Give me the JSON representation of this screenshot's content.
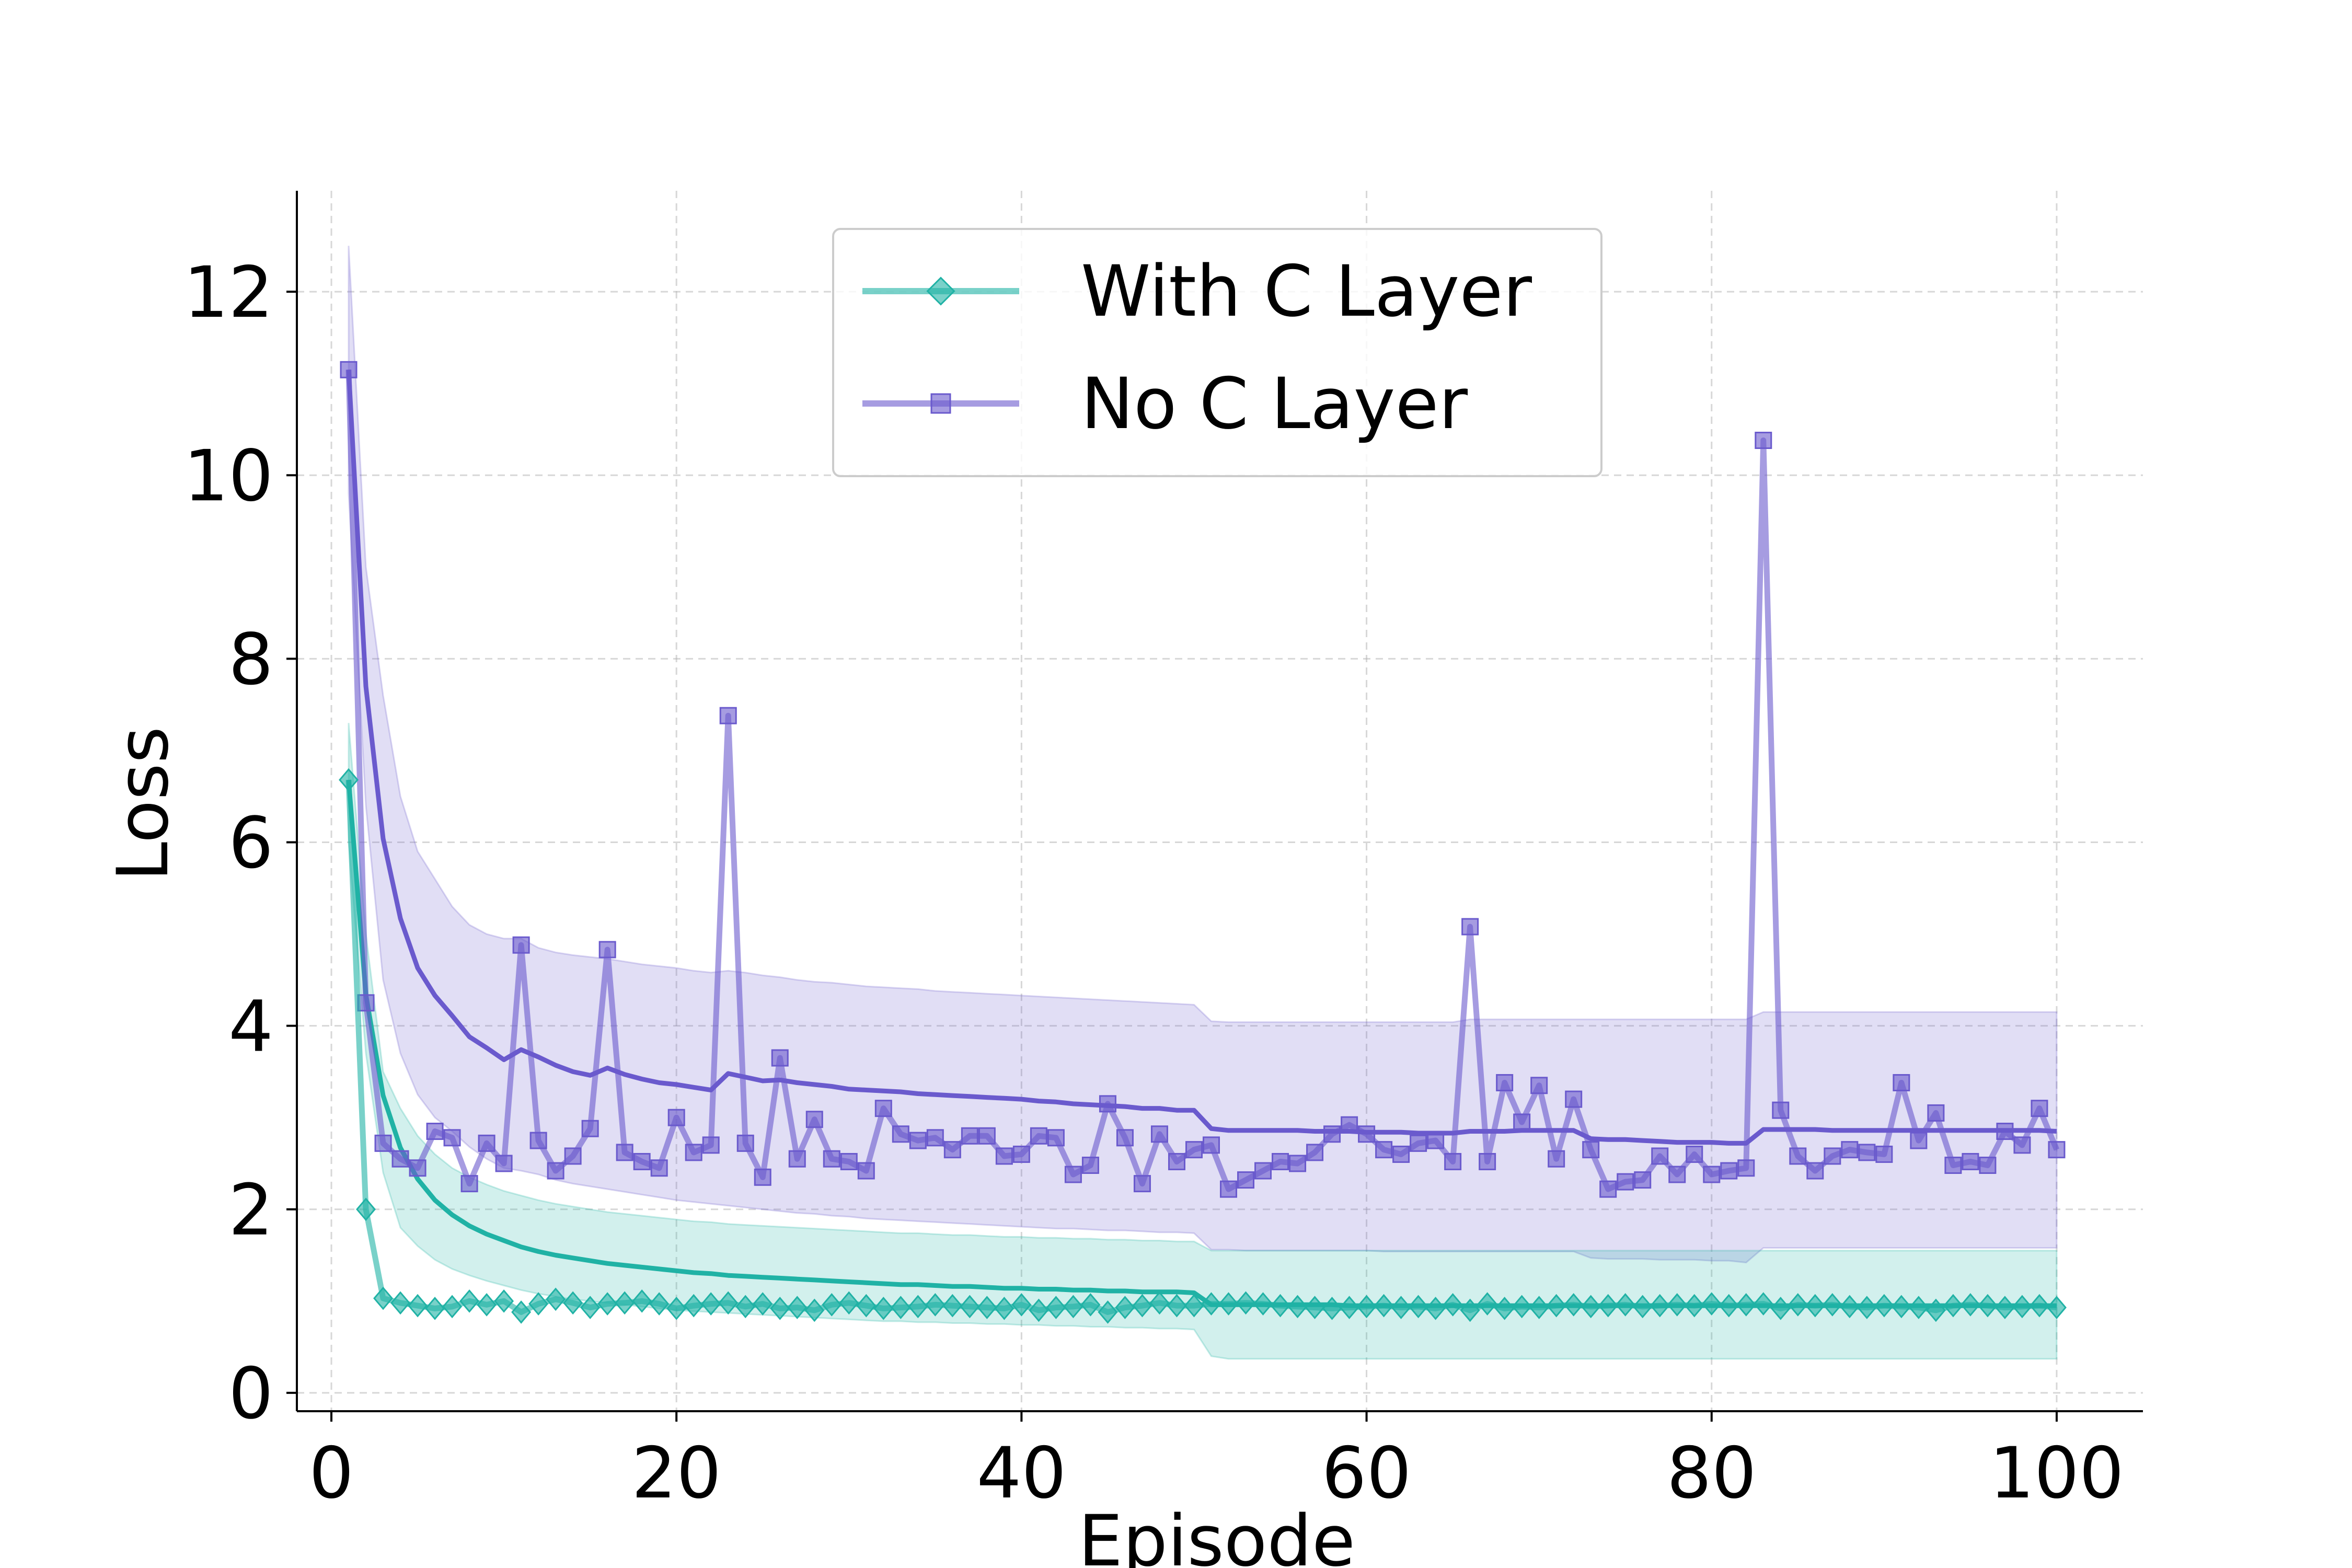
{
  "chart_data": {
    "type": "line",
    "title": "",
    "xlabel": "Episode",
    "ylabel": "Loss",
    "xlim": [
      -2,
      105
    ],
    "ylim": [
      -0.2,
      13.1
    ],
    "xticks": [
      0,
      20,
      40,
      60,
      80,
      100
    ],
    "yticks": [
      0,
      2,
      4,
      6,
      8,
      10,
      12
    ],
    "grid": true,
    "legend_position": "upper-center",
    "series": [
      {
        "name": "No C Layer",
        "color": "#6a5acd",
        "marker": "square",
        "x": [
          1,
          2,
          3,
          4,
          5,
          6,
          7,
          8,
          9,
          10,
          11,
          12,
          13,
          14,
          15,
          16,
          17,
          18,
          19,
          20,
          21,
          22,
          23,
          24,
          25,
          26,
          27,
          28,
          29,
          30,
          31,
          32,
          33,
          34,
          35,
          36,
          37,
          38,
          39,
          40,
          41,
          42,
          43,
          44,
          45,
          46,
          47,
          48,
          49,
          50,
          51,
          52,
          53,
          54,
          55,
          56,
          57,
          58,
          59,
          60,
          61,
          62,
          63,
          64,
          65,
          66,
          67,
          68,
          69,
          70,
          71,
          72,
          73,
          74,
          75,
          76,
          77,
          78,
          79,
          80,
          81,
          82,
          83,
          84,
          85,
          86,
          87,
          88,
          89,
          90,
          91,
          92,
          93,
          94,
          95,
          96,
          97,
          98,
          99,
          100
        ],
        "values": [
          11.15,
          4.25,
          2.72,
          2.55,
          2.45,
          2.85,
          2.78,
          2.28,
          2.72,
          2.5,
          4.88,
          2.75,
          2.42,
          2.58,
          2.88,
          4.83,
          2.62,
          2.52,
          2.45,
          3.0,
          2.62,
          2.7,
          7.38,
          2.72,
          2.35,
          3.65,
          2.55,
          2.98,
          2.55,
          2.52,
          2.42,
          3.1,
          2.82,
          2.75,
          2.78,
          2.65,
          2.8,
          2.8,
          2.58,
          2.6,
          2.8,
          2.78,
          2.38,
          2.48,
          3.15,
          2.78,
          2.28,
          2.82,
          2.52,
          2.65,
          2.7,
          2.22,
          2.32,
          2.42,
          2.52,
          2.5,
          2.62,
          2.82,
          2.92,
          2.82,
          2.65,
          2.6,
          2.72,
          2.75,
          2.52,
          5.08,
          2.52,
          3.38,
          2.95,
          3.35,
          2.55,
          3.2,
          2.65,
          2.22,
          2.3,
          2.32,
          2.58,
          2.38,
          2.6,
          2.38,
          2.42,
          2.45,
          10.38,
          3.08,
          2.58,
          2.42,
          2.58,
          2.65,
          2.62,
          2.6,
          3.38,
          2.75,
          3.05,
          2.48,
          2.52,
          2.48,
          2.85,
          2.7,
          3.1,
          2.65
        ],
        "mean": [
          11.15,
          7.7,
          6.04,
          5.17,
          4.63,
          4.33,
          4.11,
          3.88,
          3.76,
          3.63,
          3.74,
          3.66,
          3.57,
          3.5,
          3.46,
          3.54,
          3.47,
          3.42,
          3.38,
          3.36,
          3.33,
          3.3,
          3.48,
          3.44,
          3.4,
          3.41,
          3.38,
          3.36,
          3.34,
          3.31,
          3.3,
          3.29,
          3.28,
          3.26,
          3.25,
          3.24,
          3.23,
          3.22,
          3.21,
          3.2,
          3.18,
          3.17,
          3.15,
          3.14,
          3.13,
          3.12,
          3.1,
          3.1,
          3.08,
          3.08,
          2.88,
          2.86,
          2.86,
          2.86,
          2.86,
          2.86,
          2.85,
          2.85,
          2.85,
          2.84,
          2.84,
          2.84,
          2.83,
          2.83,
          2.83,
          2.85,
          2.85,
          2.85,
          2.86,
          2.86,
          2.86,
          2.86,
          2.77,
          2.76,
          2.76,
          2.75,
          2.74,
          2.73,
          2.73,
          2.73,
          2.72,
          2.72,
          2.87,
          2.87,
          2.87,
          2.87,
          2.86,
          2.86,
          2.86,
          2.86,
          2.86,
          2.86,
          2.86,
          2.86,
          2.86,
          2.86,
          2.86,
          2.86,
          2.86,
          2.85
        ],
        "upper": [
          12.5,
          9.0,
          7.6,
          6.5,
          5.9,
          5.6,
          5.3,
          5.1,
          5.0,
          4.95,
          4.95,
          4.85,
          4.8,
          4.77,
          4.75,
          4.73,
          4.7,
          4.67,
          4.65,
          4.63,
          4.6,
          4.58,
          4.6,
          4.58,
          4.55,
          4.53,
          4.5,
          4.48,
          4.47,
          4.45,
          4.43,
          4.42,
          4.41,
          4.4,
          4.38,
          4.37,
          4.36,
          4.35,
          4.34,
          4.33,
          4.32,
          4.31,
          4.3,
          4.29,
          4.28,
          4.27,
          4.26,
          4.25,
          4.24,
          4.23,
          4.05,
          4.04,
          4.04,
          4.04,
          4.04,
          4.04,
          4.04,
          4.04,
          4.04,
          4.04,
          4.04,
          4.04,
          4.04,
          4.04,
          4.04,
          4.07,
          4.07,
          4.07,
          4.07,
          4.07,
          4.07,
          4.07,
          4.07,
          4.07,
          4.07,
          4.07,
          4.07,
          4.07,
          4.07,
          4.07,
          4.07,
          4.07,
          4.15,
          4.15,
          4.15,
          4.15,
          4.15,
          4.15,
          4.15,
          4.15,
          4.15,
          4.15,
          4.15,
          4.15,
          4.15,
          4.15,
          4.15,
          4.15,
          4.15,
          4.15
        ],
        "lower": [
          9.8,
          6.4,
          4.5,
          3.7,
          3.25,
          3.0,
          2.85,
          2.68,
          2.55,
          2.45,
          2.42,
          2.38,
          2.32,
          2.28,
          2.25,
          2.22,
          2.19,
          2.16,
          2.13,
          2.1,
          2.08,
          2.06,
          2.04,
          2.02,
          2.0,
          1.98,
          1.96,
          1.95,
          1.93,
          1.92,
          1.9,
          1.89,
          1.88,
          1.87,
          1.86,
          1.85,
          1.84,
          1.83,
          1.82,
          1.81,
          1.8,
          1.79,
          1.79,
          1.78,
          1.77,
          1.77,
          1.76,
          1.75,
          1.75,
          1.74,
          1.56,
          1.56,
          1.55,
          1.55,
          1.55,
          1.55,
          1.55,
          1.55,
          1.55,
          1.55,
          1.54,
          1.54,
          1.54,
          1.54,
          1.54,
          1.54,
          1.54,
          1.54,
          1.54,
          1.54,
          1.54,
          1.54,
          1.47,
          1.46,
          1.46,
          1.46,
          1.45,
          1.45,
          1.45,
          1.44,
          1.44,
          1.42,
          1.58,
          1.58,
          1.58,
          1.58,
          1.58,
          1.58,
          1.58,
          1.58,
          1.58,
          1.58,
          1.58,
          1.58,
          1.58,
          1.58,
          1.58,
          1.58,
          1.58,
          1.58
        ]
      },
      {
        "name": "With C Layer",
        "color": "#20b2a5",
        "marker": "diamond",
        "x": [
          1,
          2,
          3,
          4,
          5,
          6,
          7,
          8,
          9,
          10,
          11,
          12,
          13,
          14,
          15,
          16,
          17,
          18,
          19,
          20,
          21,
          22,
          23,
          24,
          25,
          26,
          27,
          28,
          29,
          30,
          31,
          32,
          33,
          34,
          35,
          36,
          37,
          38,
          39,
          40,
          41,
          42,
          43,
          44,
          45,
          46,
          47,
          48,
          49,
          50,
          51,
          52,
          53,
          54,
          55,
          56,
          57,
          58,
          59,
          60,
          61,
          62,
          63,
          64,
          65,
          66,
          67,
          68,
          69,
          70,
          71,
          72,
          73,
          74,
          75,
          76,
          77,
          78,
          79,
          80,
          81,
          82,
          83,
          84,
          85,
          86,
          87,
          88,
          89,
          90,
          91,
          92,
          93,
          94,
          95,
          96,
          97,
          98,
          99,
          100
        ],
        "values": [
          6.68,
          2.0,
          1.03,
          0.98,
          0.95,
          0.92,
          0.94,
          1.0,
          0.96,
          1.0,
          0.88,
          0.97,
          1.02,
          0.98,
          0.93,
          0.97,
          0.98,
          1.0,
          0.97,
          0.92,
          0.95,
          0.97,
          0.98,
          0.94,
          0.97,
          0.92,
          0.93,
          0.9,
          0.96,
          0.98,
          0.95,
          0.92,
          0.93,
          0.94,
          0.96,
          0.95,
          0.94,
          0.93,
          0.92,
          0.96,
          0.9,
          0.93,
          0.94,
          0.96,
          0.88,
          0.93,
          0.95,
          0.98,
          0.95,
          0.95,
          0.97,
          0.97,
          0.98,
          0.97,
          0.95,
          0.94,
          0.93,
          0.92,
          0.93,
          0.94,
          0.95,
          0.93,
          0.94,
          0.92,
          0.96,
          0.9,
          0.97,
          0.92,
          0.94,
          0.93,
          0.95,
          0.96,
          0.94,
          0.95,
          0.96,
          0.94,
          0.95,
          0.96,
          0.95,
          0.97,
          0.95,
          0.96,
          0.97,
          0.92,
          0.96,
          0.95,
          0.96,
          0.94,
          0.93,
          0.95,
          0.94,
          0.93,
          0.9,
          0.95,
          0.96,
          0.95,
          0.93,
          0.94,
          0.95,
          0.93
        ],
        "mean": [
          6.68,
          4.34,
          3.24,
          2.67,
          2.33,
          2.1,
          1.94,
          1.82,
          1.73,
          1.66,
          1.59,
          1.54,
          1.5,
          1.47,
          1.44,
          1.41,
          1.39,
          1.37,
          1.35,
          1.33,
          1.31,
          1.3,
          1.28,
          1.27,
          1.26,
          1.25,
          1.24,
          1.23,
          1.22,
          1.21,
          1.2,
          1.19,
          1.18,
          1.18,
          1.17,
          1.16,
          1.16,
          1.15,
          1.14,
          1.14,
          1.13,
          1.13,
          1.12,
          1.12,
          1.11,
          1.11,
          1.1,
          1.1,
          1.1,
          1.09,
          0.96,
          0.96,
          0.96,
          0.96,
          0.96,
          0.96,
          0.96,
          0.96,
          0.95,
          0.95,
          0.95,
          0.95,
          0.95,
          0.95,
          0.95,
          0.95,
          0.95,
          0.95,
          0.95,
          0.95,
          0.95,
          0.95,
          0.95,
          0.95,
          0.95,
          0.95,
          0.95,
          0.95,
          0.95,
          0.95,
          0.95,
          0.95,
          0.95,
          0.95,
          0.95,
          0.95,
          0.95,
          0.95,
          0.95,
          0.95,
          0.95,
          0.95,
          0.95,
          0.95,
          0.95,
          0.95,
          0.95,
          0.95,
          0.95,
          0.95
        ],
        "upper": [
          7.3,
          5.0,
          3.5,
          3.1,
          2.8,
          2.6,
          2.45,
          2.35,
          2.27,
          2.2,
          2.15,
          2.1,
          2.06,
          2.03,
          2.0,
          1.97,
          1.95,
          1.93,
          1.91,
          1.89,
          1.87,
          1.86,
          1.84,
          1.83,
          1.82,
          1.81,
          1.8,
          1.79,
          1.78,
          1.77,
          1.76,
          1.75,
          1.74,
          1.74,
          1.73,
          1.72,
          1.72,
          1.71,
          1.7,
          1.7,
          1.69,
          1.69,
          1.68,
          1.68,
          1.67,
          1.67,
          1.66,
          1.66,
          1.65,
          1.65,
          1.55,
          1.55,
          1.55,
          1.55,
          1.55,
          1.55,
          1.55,
          1.55,
          1.55,
          1.55,
          1.55,
          1.55,
          1.55,
          1.55,
          1.55,
          1.55,
          1.55,
          1.55,
          1.55,
          1.55,
          1.55,
          1.55,
          1.55,
          1.55,
          1.55,
          1.55,
          1.55,
          1.55,
          1.55,
          1.55,
          1.55,
          1.55,
          1.55,
          1.55,
          1.55,
          1.55,
          1.55,
          1.55,
          1.55,
          1.55,
          1.55,
          1.55,
          1.55,
          1.55,
          1.55,
          1.55,
          1.55,
          1.55,
          1.55,
          1.55
        ],
        "lower": [
          6.0,
          3.7,
          2.4,
          1.8,
          1.6,
          1.45,
          1.35,
          1.28,
          1.22,
          1.17,
          1.12,
          1.08,
          1.05,
          1.02,
          1.0,
          0.98,
          0.96,
          0.94,
          0.92,
          0.9,
          0.89,
          0.88,
          0.87,
          0.86,
          0.85,
          0.84,
          0.83,
          0.82,
          0.81,
          0.8,
          0.79,
          0.78,
          0.78,
          0.77,
          0.77,
          0.76,
          0.76,
          0.75,
          0.75,
          0.74,
          0.74,
          0.73,
          0.73,
          0.72,
          0.72,
          0.71,
          0.71,
          0.7,
          0.7,
          0.69,
          0.4,
          0.37,
          0.37,
          0.37,
          0.37,
          0.37,
          0.37,
          0.37,
          0.37,
          0.37,
          0.37,
          0.37,
          0.37,
          0.37,
          0.37,
          0.37,
          0.37,
          0.37,
          0.37,
          0.37,
          0.37,
          0.37,
          0.37,
          0.37,
          0.37,
          0.37,
          0.37,
          0.37,
          0.37,
          0.37,
          0.37,
          0.37,
          0.37,
          0.37,
          0.37,
          0.37,
          0.37,
          0.37,
          0.37,
          0.37,
          0.37,
          0.37,
          0.37,
          0.37,
          0.37,
          0.37,
          0.37,
          0.37,
          0.37,
          0.37
        ]
      }
    ],
    "legend": [
      {
        "name": "With C Layer",
        "marker": "diamond",
        "color": "#20b2a5"
      },
      {
        "name": "No C Layer",
        "marker": "square",
        "color": "#6a5acd"
      }
    ]
  }
}
